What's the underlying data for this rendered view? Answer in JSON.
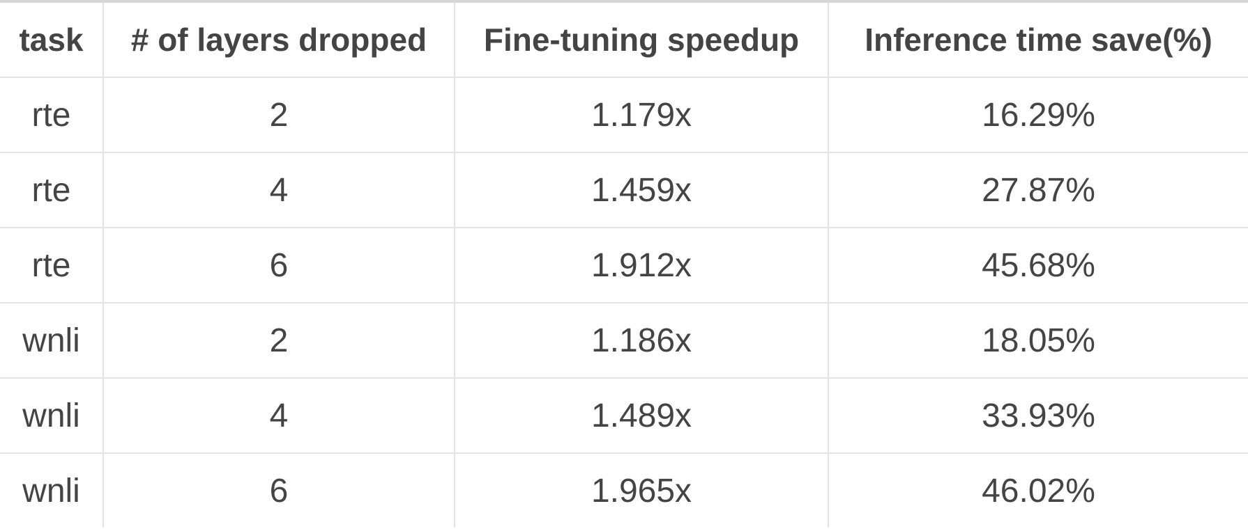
{
  "chart_data": {
    "type": "table",
    "columns": [
      "task",
      "# of layers dropped",
      "Fine-tuning speedup",
      "Inference time save(%)"
    ],
    "rows": [
      [
        "rte",
        "2",
        "1.179x",
        "16.29%"
      ],
      [
        "rte",
        "4",
        "1.459x",
        "27.87%"
      ],
      [
        "rte",
        "6",
        "1.912x",
        "45.68%"
      ],
      [
        "wnli",
        "2",
        "1.186x",
        "18.05%"
      ],
      [
        "wnli",
        "4",
        "1.489x",
        "33.93%"
      ],
      [
        "wnli",
        "6",
        "1.965x",
        "46.02%"
      ]
    ]
  }
}
